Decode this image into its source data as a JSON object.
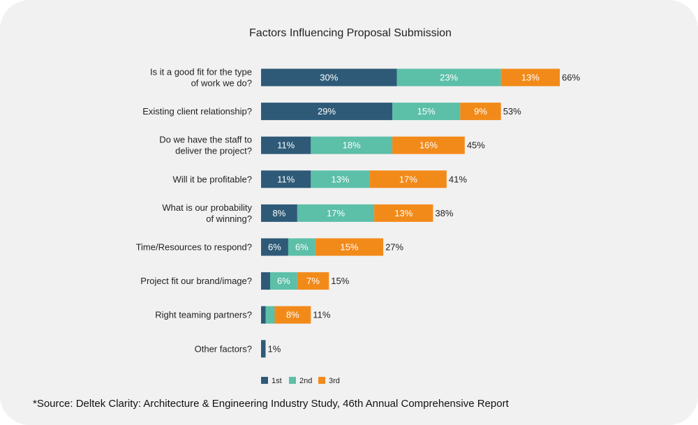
{
  "chart_data": {
    "type": "bar",
    "orientation": "horizontal",
    "stacked": true,
    "title": "Factors Influencing Proposal Submission",
    "categories": [
      [
        "Is it a good fit for the type",
        "of work we do?"
      ],
      [
        "Existing client relationship?"
      ],
      [
        "Do we have the staff to",
        "deliver the project?"
      ],
      [
        "Will it be profitable?"
      ],
      [
        "What is our probability",
        "of winning?"
      ],
      [
        "Time/Resources to respond?"
      ],
      [
        "Project fit our brand/image?"
      ],
      [
        "Right teaming partners?"
      ],
      [
        "Other factors?"
      ]
    ],
    "series": [
      {
        "name": "1st",
        "color": "#2e5a78",
        "values": [
          30,
          29,
          11,
          11,
          8,
          6,
          2,
          1,
          1
        ],
        "labels": [
          "30%",
          "29%",
          "11%",
          "11%",
          "8%",
          "6%",
          "",
          "",
          ""
        ]
      },
      {
        "name": "2nd",
        "color": "#5cbfa8",
        "values": [
          23,
          15,
          18,
          13,
          17,
          6,
          6,
          2,
          0
        ],
        "labels": [
          "23%",
          "15%",
          "18%",
          "13%",
          "17%",
          "6%",
          "6%",
          "",
          ""
        ]
      },
      {
        "name": "3rd",
        "color": "#f28a1a",
        "values": [
          13,
          9,
          16,
          17,
          13,
          15,
          7,
          8,
          0
        ],
        "labels": [
          "13%",
          "9%",
          "16%",
          "17%",
          "13%",
          "15%",
          "7%",
          "8%",
          ""
        ]
      }
    ],
    "totals": [
      "66%",
      "53%",
      "45%",
      "41%",
      "38%",
      "27%",
      "15%",
      "11%",
      "1%"
    ],
    "xlim": [
      0,
      66
    ],
    "legend_position": "bottom"
  },
  "source": "*Source: Deltek Clarity: Architecture & Engineering Industry Study, 46th Annual Comprehensive Report"
}
